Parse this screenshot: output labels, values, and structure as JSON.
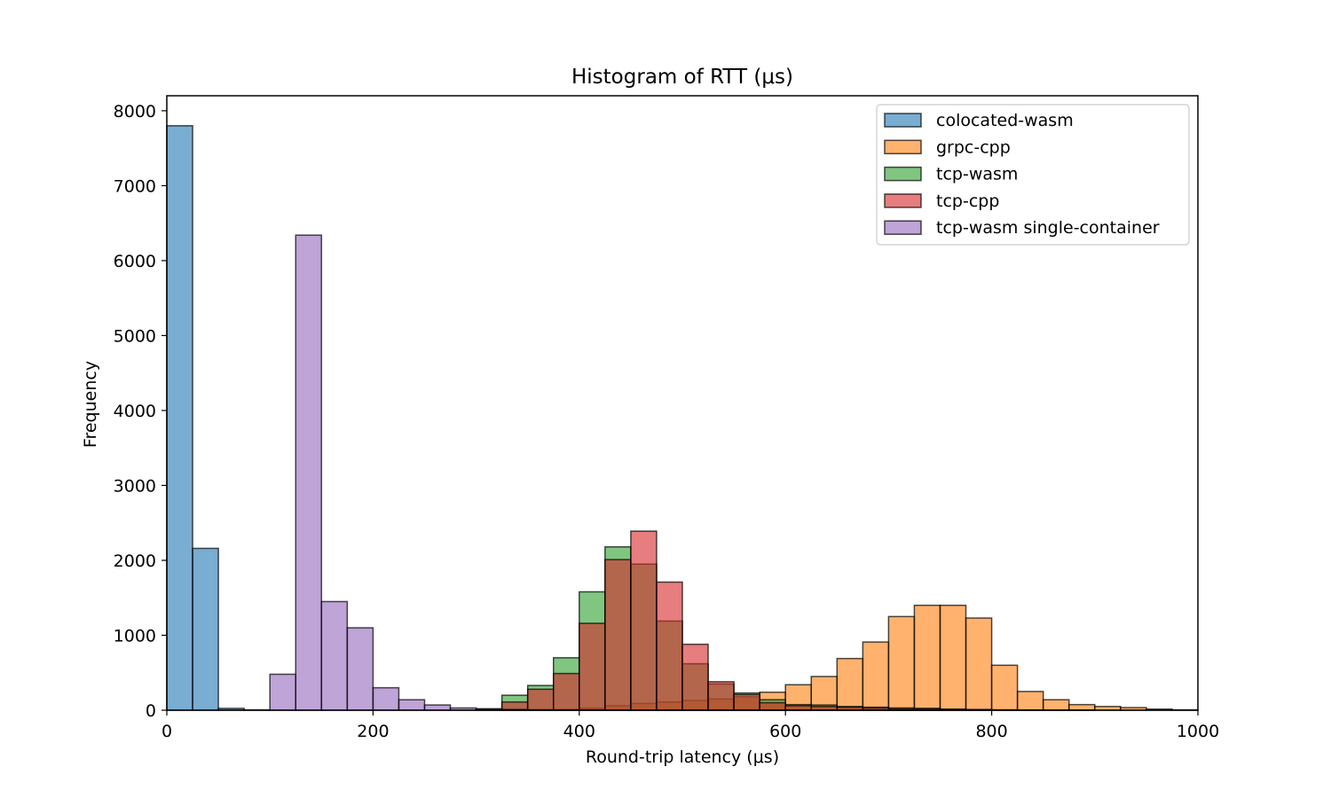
{
  "chart_data": {
    "type": "bar",
    "title": "Histogram of RTT (μs)",
    "xlabel": "Round-trip latency (μs)",
    "ylabel": "Frequency",
    "xlim": [
      0,
      1000
    ],
    "ylim": [
      0,
      8200
    ],
    "xticks": [
      "0",
      "200",
      "400",
      "600",
      "800",
      "1000"
    ],
    "yticks": [
      "0",
      "1000",
      "2000",
      "3000",
      "4000",
      "5000",
      "6000",
      "7000",
      "8000"
    ],
    "bin_width": 25,
    "bin_starts": [
      0,
      25,
      50,
      75,
      100,
      125,
      150,
      175,
      200,
      225,
      250,
      275,
      300,
      325,
      350,
      375,
      400,
      425,
      450,
      475,
      500,
      525,
      550,
      575,
      600,
      625,
      650,
      675,
      700,
      725,
      750,
      775,
      800,
      825,
      850,
      875,
      900,
      925,
      950,
      975
    ],
    "grid": false,
    "legend_position": "top-right",
    "series": [
      {
        "name": "colocated-wasm",
        "color": "#1f77b4",
        "values": [
          7800,
          2160,
          25,
          5,
          0,
          0,
          0,
          0,
          0,
          0,
          0,
          0,
          0,
          0,
          0,
          0,
          0,
          0,
          0,
          0,
          0,
          0,
          0,
          0,
          0,
          0,
          0,
          0,
          0,
          0,
          0,
          0,
          0,
          0,
          0,
          0,
          0,
          0,
          0,
          0
        ]
      },
      {
        "name": "grpc-cpp",
        "color": "#ff7f0e",
        "values": [
          0,
          0,
          0,
          0,
          0,
          0,
          0,
          0,
          0,
          0,
          0,
          0,
          0,
          0,
          5,
          10,
          25,
          60,
          90,
          110,
          130,
          150,
          180,
          240,
          340,
          450,
          690,
          910,
          1250,
          1400,
          1400,
          1230,
          600,
          250,
          140,
          75,
          50,
          35,
          15,
          5
        ]
      },
      {
        "name": "tcp-wasm",
        "color": "#2ca02c",
        "values": [
          0,
          0,
          0,
          0,
          0,
          0,
          0,
          0,
          0,
          0,
          0,
          0,
          0,
          200,
          330,
          700,
          1580,
          2180,
          1950,
          1190,
          620,
          350,
          230,
          140,
          75,
          70,
          50,
          40,
          30,
          25,
          15,
          10,
          5,
          3,
          2,
          1,
          0,
          0,
          0,
          0
        ]
      },
      {
        "name": "tcp-cpp",
        "color": "#d62728",
        "values": [
          0,
          0,
          0,
          0,
          0,
          0,
          0,
          0,
          0,
          0,
          0,
          0,
          15,
          110,
          280,
          490,
          1160,
          2010,
          2390,
          1710,
          880,
          380,
          210,
          100,
          60,
          50,
          40,
          30,
          20,
          20,
          10,
          5,
          3,
          2,
          1,
          1,
          0,
          0,
          0,
          0
        ]
      },
      {
        "name": "tcp-wasm single-container",
        "color": "#9467bd",
        "values": [
          0,
          0,
          0,
          0,
          480,
          6340,
          1450,
          1100,
          300,
          140,
          70,
          30,
          20,
          10,
          5,
          3,
          2,
          1,
          0,
          0,
          0,
          0,
          0,
          0,
          0,
          0,
          0,
          0,
          0,
          0,
          0,
          0,
          0,
          0,
          0,
          0,
          0,
          0,
          0,
          0
        ]
      }
    ]
  }
}
